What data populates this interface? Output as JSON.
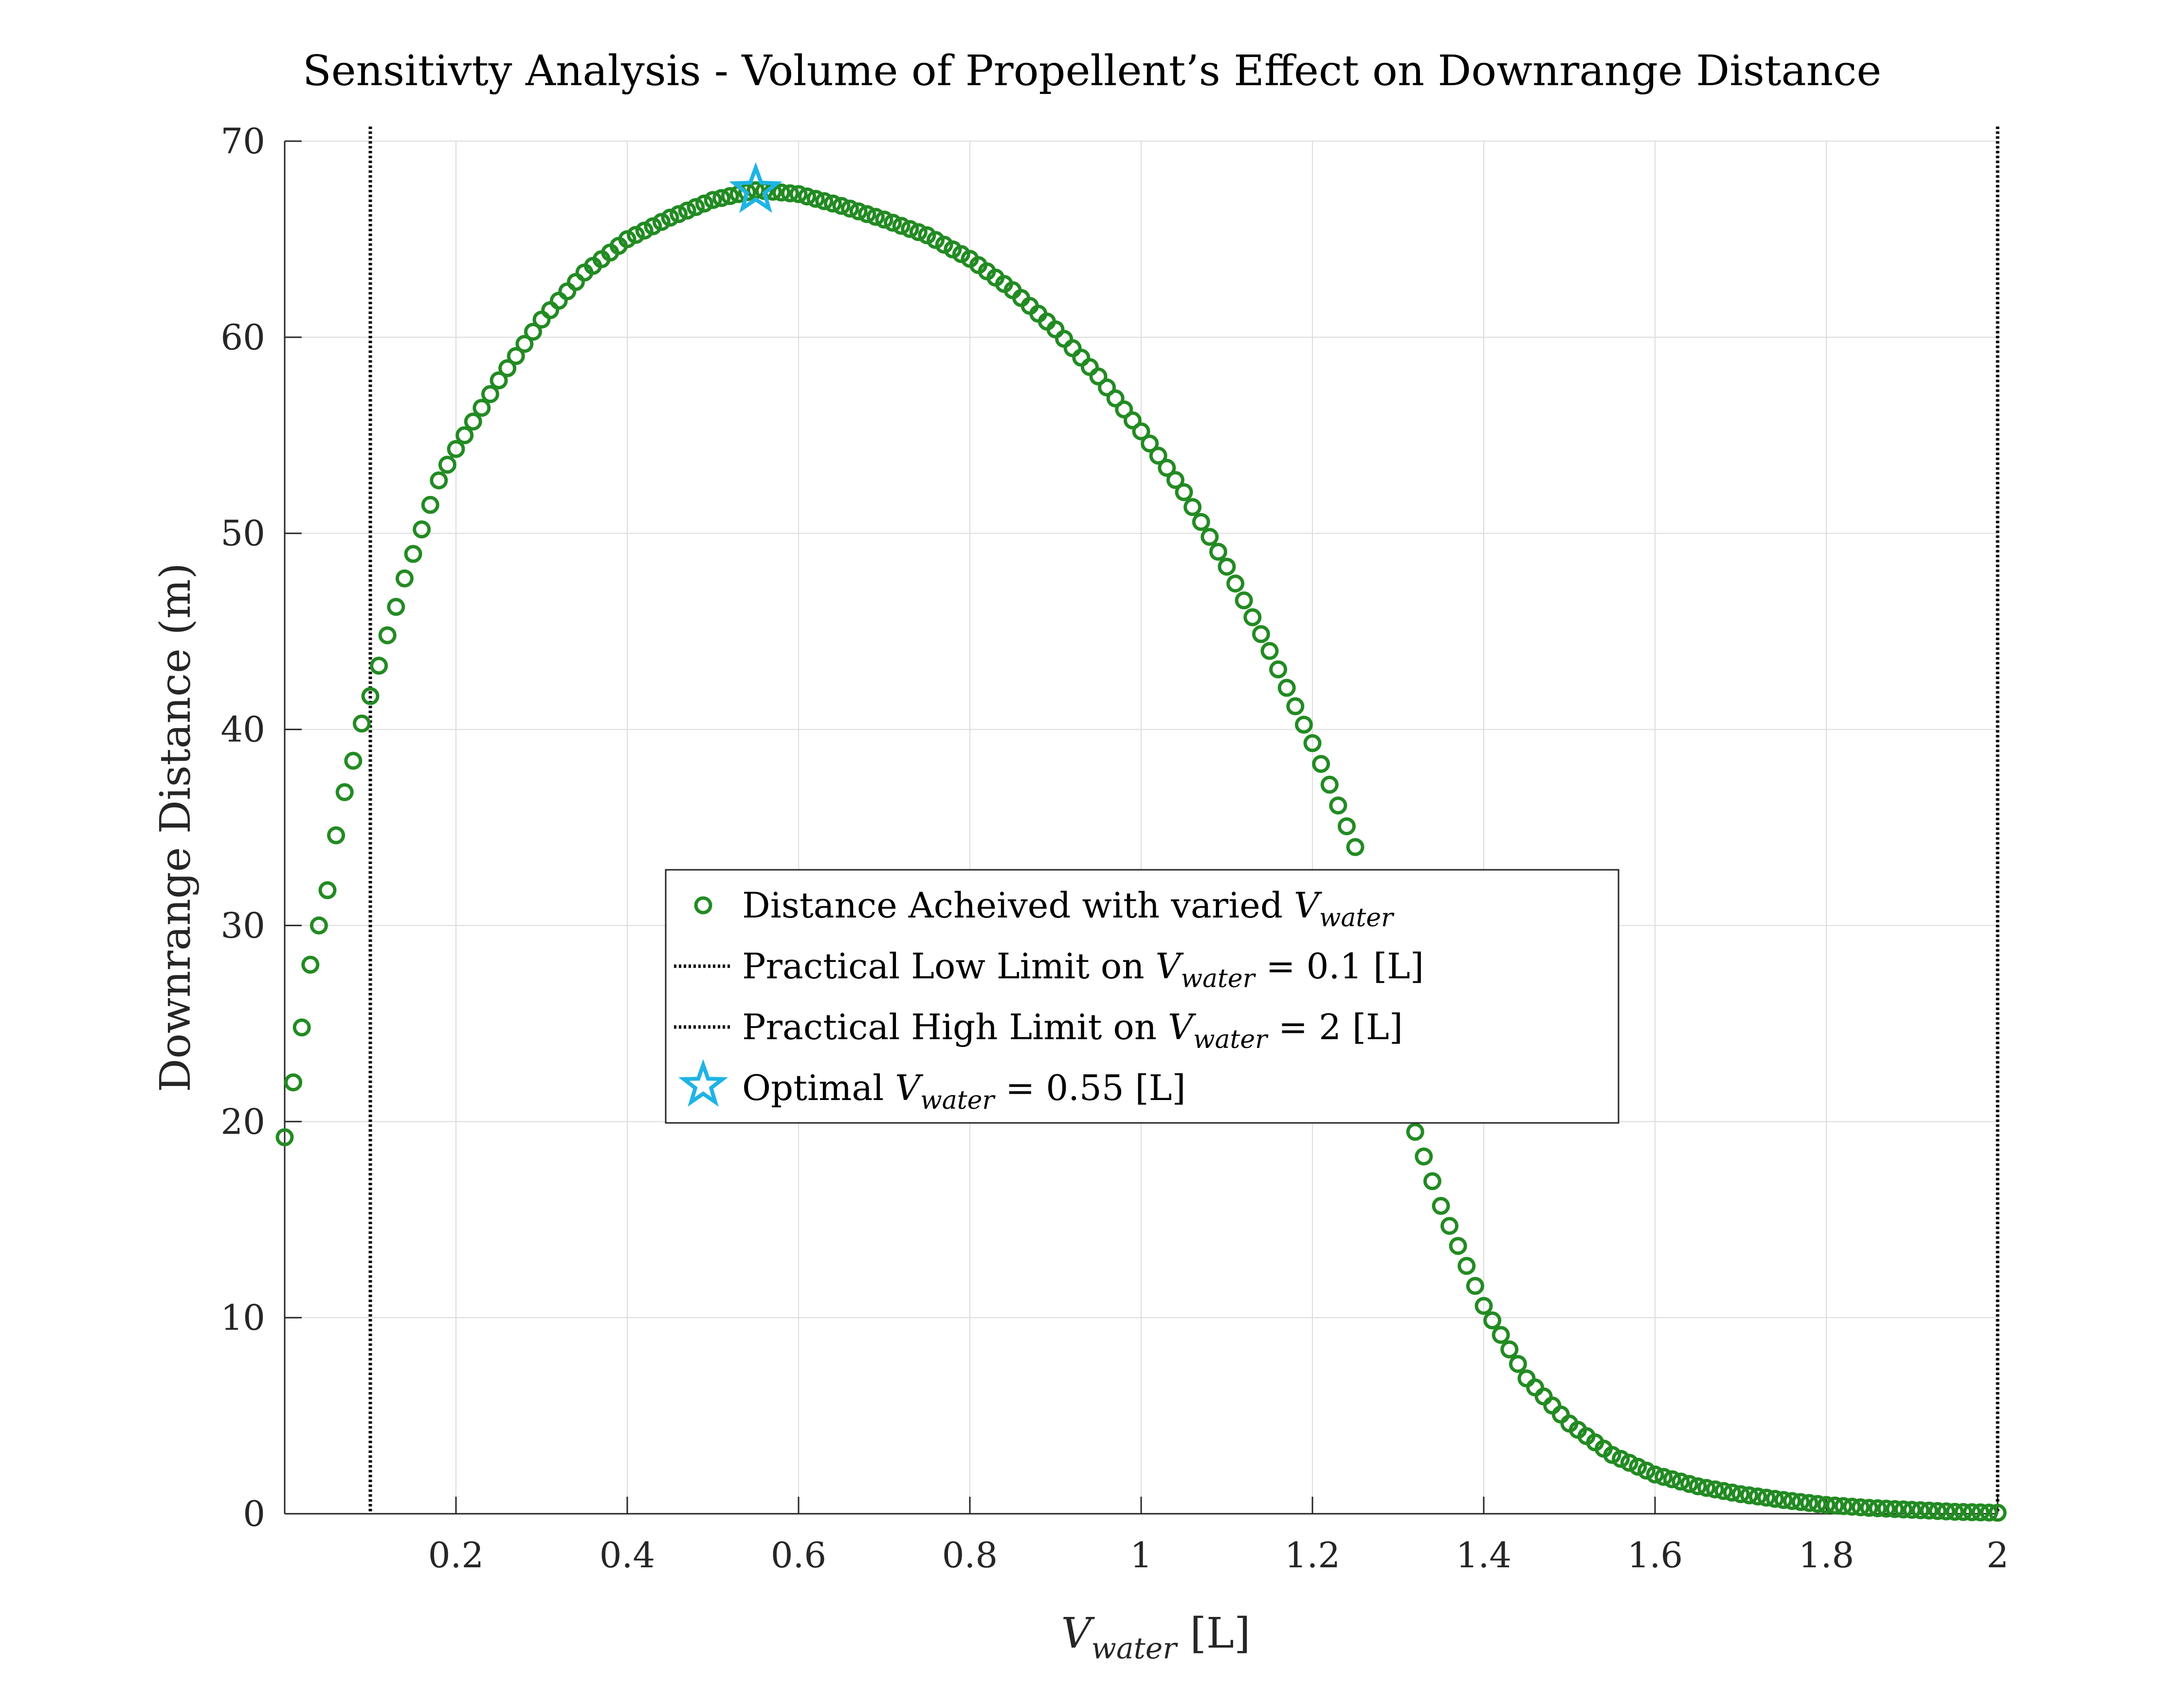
{
  "chart_data": {
    "type": "scatter",
    "title": "Sensitivty Analysis - Volume of Propellent’s Effect on Downrange Distance",
    "xlabel": {
      "main": "V",
      "sub": "water",
      "unit": " [L]"
    },
    "ylabel": "Downrange Distance (m)",
    "xlim": [
      0,
      2
    ],
    "ylim": [
      0,
      70
    ],
    "x_ticks": [
      0.2,
      0.4,
      0.6,
      0.8,
      1,
      1.2,
      1.4,
      1.6,
      1.8,
      2
    ],
    "x_tick_labels": [
      "0.2",
      "0.4",
      "0.6",
      "0.8",
      "1",
      "1.2",
      "1.4",
      "1.6",
      "1.8",
      "2"
    ],
    "y_ticks": [
      0,
      10,
      20,
      30,
      40,
      50,
      60,
      70
    ],
    "y_tick_labels": [
      "0",
      "10",
      "20",
      "30",
      "40",
      "50",
      "60",
      "70"
    ],
    "grid": true,
    "legend_placement": "center",
    "series": [
      {
        "name": "Distance Acheived with varied V_water",
        "marker": "circle",
        "color": "#228b22",
        "curve_knots": {
          "x": [
            0.0,
            0.01,
            0.02,
            0.03,
            0.04,
            0.05,
            0.06,
            0.07,
            0.08,
            0.09,
            0.1,
            0.12,
            0.14,
            0.16,
            0.18,
            0.2,
            0.25,
            0.3,
            0.35,
            0.4,
            0.45,
            0.5,
            0.55,
            0.6,
            0.65,
            0.7,
            0.75,
            0.8,
            0.85,
            0.9,
            0.95,
            1.0,
            1.05,
            1.1,
            1.15,
            1.2,
            1.25,
            1.3,
            1.35,
            1.4,
            1.45,
            1.5,
            1.55,
            1.6,
            1.65,
            1.7,
            1.75,
            1.8,
            1.85,
            1.9,
            1.95,
            2.0
          ],
          "y": [
            19.2,
            22.0,
            24.8,
            28.0,
            30.0,
            31.8,
            34.6,
            36.8,
            38.4,
            40.3,
            41.7,
            44.8,
            47.7,
            50.2,
            52.7,
            54.3,
            57.8,
            60.9,
            63.3,
            65.0,
            66.1,
            67.0,
            67.5,
            67.3,
            66.7,
            66.0,
            65.2,
            64.0,
            62.4,
            60.4,
            58.0,
            55.2,
            52.1,
            48.3,
            44.0,
            39.3,
            34.0,
            22.0,
            15.7,
            10.6,
            6.9,
            4.6,
            3.0,
            2.0,
            1.4,
            1.0,
            0.7,
            0.45,
            0.3,
            0.2,
            0.1,
            0.05
          ]
        }
      },
      {
        "name": "Practical Low Limit on V_water = 0.1 [L]",
        "type": "vline",
        "x": 0.1,
        "color": "#000000",
        "style": "dotted"
      },
      {
        "name": "Practical High Limit on V_water = 2 [L]",
        "type": "vline",
        "x": 2,
        "color": "#000000",
        "style": "dotted"
      },
      {
        "name": "Optimal V_water = 0.55 [L]",
        "marker": "star",
        "color": "#1eb4e6",
        "x": [
          0.55
        ],
        "y": [
          67.5
        ]
      }
    ],
    "legend": [
      {
        "marker": "circle",
        "color": "#228b22",
        "prefix": "Distance Acheived with varied ",
        "var": "V",
        "sub": "water",
        "suffix": ""
      },
      {
        "marker": "dotted-line",
        "color": "#000000",
        "prefix": "Practical Low Limit on ",
        "var": "V",
        "sub": "water",
        "suffix": " = 0.1 [L]"
      },
      {
        "marker": "dotted-line",
        "color": "#000000",
        "prefix": "Practical High Limit on ",
        "var": "V",
        "sub": "water",
        "suffix": " = 2 [L]"
      },
      {
        "marker": "star",
        "color": "#1eb4e6",
        "prefix": "Optimal ",
        "var": "V",
        "sub": "water",
        "suffix": " = 0.55 [L]"
      }
    ]
  }
}
